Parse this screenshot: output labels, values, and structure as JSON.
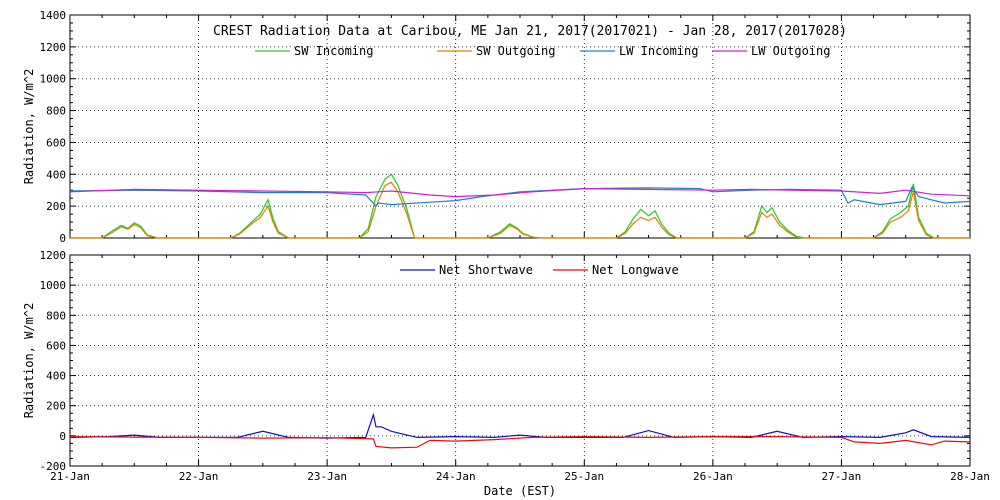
{
  "chart_data": [
    {
      "type": "line",
      "title": "CREST Radiation Data at Caribou, ME   Jan 21, 2017(2017021) - Jan 28, 2017(2017028)",
      "xlabel": "",
      "ylabel": "Radiation, W/m^2",
      "x_ticks": [
        "21-Jan",
        "22-Jan",
        "23-Jan",
        "24-Jan",
        "25-Jan",
        "26-Jan",
        "27-Jan",
        "28-Jan"
      ],
      "xlim": [
        0,
        7
      ],
      "ylim": [
        0,
        1400
      ],
      "y_ticks": [
        0,
        200,
        400,
        600,
        800,
        1000,
        1200,
        1400
      ],
      "grid": true,
      "legend_position": "top",
      "colors": {
        "sw_in": "#22cc22",
        "sw_out": "#e08000",
        "lw_in": "#1e7fd0",
        "lw_out": "#d020d0"
      },
      "series": [
        {
          "name": "SW Incoming",
          "key": "sw_in",
          "x": [
            0.0,
            0.25,
            0.32,
            0.4,
            0.45,
            0.5,
            0.55,
            0.6,
            0.68,
            0.75,
            1.0,
            1.25,
            1.32,
            1.4,
            1.48,
            1.54,
            1.58,
            1.62,
            1.7,
            1.75,
            2.0,
            2.25,
            2.32,
            2.38,
            2.45,
            2.5,
            2.55,
            2.62,
            2.68,
            2.75,
            3.0,
            3.25,
            3.35,
            3.42,
            3.48,
            3.52,
            3.6,
            3.68,
            3.75,
            4.0,
            4.25,
            4.32,
            4.38,
            4.44,
            4.5,
            4.55,
            4.6,
            4.66,
            4.72,
            5.0,
            5.25,
            5.32,
            5.38,
            5.42,
            5.46,
            5.52,
            5.58,
            5.65,
            5.72,
            6.0,
            6.25,
            6.32,
            6.38,
            6.46,
            6.52,
            6.56,
            6.6,
            6.66,
            6.72,
            7.0
          ],
          "values": [
            0,
            0,
            40,
            80,
            60,
            95,
            75,
            20,
            0,
            0,
            0,
            0,
            30,
            90,
            150,
            240,
            120,
            40,
            0,
            0,
            0,
            0,
            60,
            260,
            370,
            400,
            330,
            180,
            0,
            0,
            0,
            0,
            40,
            90,
            60,
            30,
            5,
            0,
            0,
            0,
            0,
            40,
            120,
            180,
            140,
            170,
            90,
            30,
            0,
            0,
            0,
            40,
            200,
            160,
            190,
            100,
            50,
            10,
            0,
            0,
            0,
            40,
            120,
            160,
            200,
            340,
            130,
            30,
            0,
            0
          ]
        },
        {
          "name": "SW Outgoing",
          "key": "sw_out",
          "x": [
            0.0,
            0.25,
            0.32,
            0.4,
            0.45,
            0.5,
            0.55,
            0.6,
            0.68,
            0.75,
            1.0,
            1.25,
            1.32,
            1.4,
            1.48,
            1.54,
            1.58,
            1.62,
            1.7,
            1.75,
            2.0,
            2.25,
            2.32,
            2.38,
            2.45,
            2.5,
            2.55,
            2.62,
            2.68,
            2.75,
            3.0,
            3.25,
            3.35,
            3.42,
            3.48,
            3.52,
            3.6,
            3.68,
            3.75,
            4.0,
            4.25,
            4.32,
            4.38,
            4.44,
            4.5,
            4.55,
            4.6,
            4.66,
            4.72,
            5.0,
            5.25,
            5.32,
            5.38,
            5.42,
            5.46,
            5.52,
            5.58,
            5.65,
            5.72,
            6.0,
            6.25,
            6.32,
            6.38,
            6.46,
            6.52,
            6.56,
            6.6,
            6.66,
            6.72,
            7.0
          ],
          "values": [
            0,
            0,
            30,
            70,
            55,
            85,
            65,
            15,
            0,
            0,
            0,
            0,
            25,
            80,
            130,
            200,
            100,
            30,
            0,
            0,
            0,
            0,
            40,
            200,
            330,
            350,
            290,
            150,
            0,
            0,
            0,
            0,
            30,
            80,
            55,
            25,
            5,
            0,
            0,
            0,
            0,
            30,
            90,
            130,
            110,
            130,
            70,
            20,
            0,
            0,
            0,
            30,
            160,
            130,
            150,
            80,
            40,
            5,
            0,
            0,
            0,
            30,
            100,
            130,
            170,
            290,
            110,
            20,
            0,
            0
          ]
        },
        {
          "name": "LW Incoming",
          "key": "lw_in",
          "x": [
            0,
            0.5,
            1.0,
            1.5,
            2.0,
            2.3,
            2.38,
            2.4,
            2.5,
            2.8,
            3.0,
            3.2,
            3.5,
            4.0,
            4.5,
            4.9,
            5.0,
            5.3,
            5.6,
            6.0,
            6.05,
            6.1,
            6.3,
            6.5,
            6.55,
            6.6,
            6.7,
            6.8,
            7.0
          ],
          "values": [
            295,
            300,
            295,
            285,
            285,
            270,
            200,
            220,
            210,
            225,
            235,
            260,
            290,
            310,
            315,
            310,
            290,
            300,
            305,
            300,
            220,
            240,
            210,
            230,
            320,
            260,
            240,
            220,
            230
          ]
        },
        {
          "name": "LW Outgoing",
          "key": "lw_out",
          "x": [
            0,
            0.5,
            1.0,
            1.5,
            2.0,
            2.3,
            2.5,
            2.8,
            3.0,
            3.3,
            3.6,
            4.0,
            4.5,
            5.0,
            5.3,
            5.6,
            6.0,
            6.3,
            6.5,
            6.7,
            7.0
          ],
          "values": [
            290,
            305,
            300,
            295,
            290,
            285,
            295,
            270,
            260,
            270,
            290,
            310,
            305,
            300,
            305,
            300,
            295,
            280,
            300,
            275,
            265
          ]
        }
      ]
    },
    {
      "type": "line",
      "title": "",
      "xlabel": "Date (EST)",
      "ylabel": "Radiation, W/m^2",
      "x_ticks": [
        "21-Jan",
        "22-Jan",
        "23-Jan",
        "24-Jan",
        "25-Jan",
        "26-Jan",
        "27-Jan",
        "28-Jan"
      ],
      "xlim": [
        0,
        7
      ],
      "ylim": [
        -200,
        1200
      ],
      "y_ticks": [
        -200,
        0,
        200,
        400,
        600,
        800,
        1000,
        1200
      ],
      "grid": true,
      "legend_position": "top",
      "colors": {
        "net_sw": "#1010c0",
        "net_lw": "#e01010"
      },
      "series": [
        {
          "name": "Net Shortwave",
          "key": "net_sw",
          "x": [
            0,
            0.3,
            0.5,
            0.7,
            1.0,
            1.3,
            1.5,
            1.7,
            2.0,
            2.3,
            2.36,
            2.38,
            2.42,
            2.5,
            2.6,
            2.7,
            3.0,
            3.3,
            3.5,
            3.7,
            4.0,
            4.3,
            4.5,
            4.7,
            5.0,
            5.3,
            5.5,
            5.7,
            6.0,
            6.3,
            6.5,
            6.56,
            6.7,
            7.0
          ],
          "values": [
            -10,
            -5,
            5,
            -10,
            -10,
            -10,
            30,
            -10,
            -15,
            -10,
            140,
            60,
            60,
            30,
            10,
            -10,
            -5,
            -10,
            5,
            -10,
            -10,
            -10,
            35,
            -10,
            -5,
            -10,
            30,
            -10,
            -5,
            -10,
            20,
            40,
            -5,
            -10
          ]
        },
        {
          "name": "Net Longwave",
          "key": "net_lw",
          "x": [
            0,
            0.5,
            1.0,
            1.5,
            2.0,
            2.36,
            2.38,
            2.5,
            2.7,
            2.8,
            3.0,
            3.3,
            3.6,
            4.0,
            4.5,
            5.0,
            5.5,
            6.0,
            6.1,
            6.3,
            6.5,
            6.7,
            6.8,
            7.0
          ],
          "values": [
            -5,
            -8,
            -10,
            -15,
            -12,
            -20,
            -70,
            -80,
            -75,
            -30,
            -35,
            -25,
            -10,
            -5,
            -10,
            -5,
            -5,
            -10,
            -40,
            -50,
            -30,
            -60,
            -35,
            -40
          ]
        }
      ]
    }
  ]
}
